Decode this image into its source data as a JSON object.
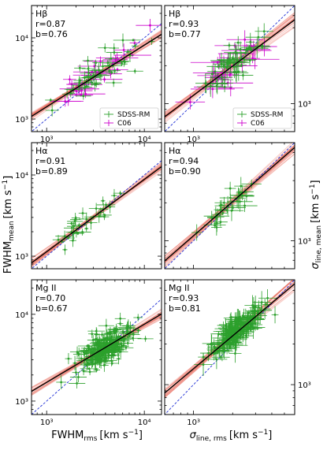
{
  "figure": {
    "ylabel_left": "FWHM",
    "ylabel_left_sub": "mean",
    "ylabel_left_units": "[km s",
    "ylabel_right": "σ",
    "ylabel_right_sub": "line, mean",
    "ylabel_right_units": "[km s",
    "xlabel_left": "FWHM",
    "xlabel_left_sub": "rms",
    "xlabel_left_units": "[km s",
    "xlabel_right": "σ",
    "xlabel_right_sub": "line, rms",
    "xlabel_right_units": "[km s",
    "units_exp": "−1",
    "units_close": "]",
    "legend": [
      {
        "label": "SDSS-RM",
        "color": "#2ca02c",
        "marker": "errorbar-plus"
      },
      {
        "label": "C06",
        "color": "#cc00cc",
        "marker": "errorbar-plus"
      }
    ],
    "colors": {
      "sdss": "#2ca02c",
      "c06": "#cc00cc",
      "fit": "#000000",
      "band": "#e8665a",
      "one_to_one": "#1f2fd6"
    }
  },
  "chart_data": [
    {
      "type": "scatter",
      "id": "fwhm-hbeta",
      "line": "Hβ",
      "r_text": "r=0.87",
      "b_text": "b=0.76",
      "xscale": "log",
      "yscale": "log",
      "xlim": [
        700,
        15000
      ],
      "ylim": [
        700,
        25000
      ],
      "xticks": [
        {
          "value": 1000,
          "label": "10³"
        },
        {
          "value": 10000,
          "label": "10⁴"
        }
      ],
      "yticks_left": [
        {
          "value": 1000,
          "label": "10³"
        },
        {
          "value": 10000,
          "label": "10⁴"
        }
      ],
      "fit": {
        "log_pivot": 3.5,
        "intercept_at_pivot": 3.53,
        "slope": 0.76
      },
      "show_legend": true,
      "seed": 11,
      "n_sdss": 55,
      "n_c06": 30,
      "scatter_dex": 0.1,
      "x_center": 3.55,
      "x_spread": 0.22
    },
    {
      "type": "scatter",
      "id": "sigma-hbeta",
      "line": "Hβ",
      "r_text": "r=0.93",
      "b_text": "b=0.77",
      "xscale": "log",
      "yscale": "log",
      "xlim": [
        600,
        6000
      ],
      "ylim": [
        600,
        6000
      ],
      "xticks": [
        {
          "value": 1000,
          "label": "10³"
        }
      ],
      "yticks_right": [
        {
          "value": 1000,
          "label": "10³"
        }
      ],
      "fit": {
        "log_pivot": 3.2,
        "intercept_at_pivot": 3.22,
        "slope": 0.77
      },
      "show_legend": true,
      "seed": 23,
      "n_sdss": 55,
      "n_c06": 30,
      "scatter_dex": 0.06,
      "x_center": 3.28,
      "x_spread": 0.12
    },
    {
      "type": "scatter",
      "id": "fwhm-halpha",
      "line": "Hα",
      "r_text": "r=0.91",
      "b_text": "b=0.89",
      "xscale": "log",
      "yscale": "log",
      "xlim": [
        700,
        15000
      ],
      "ylim": [
        700,
        25000
      ],
      "xticks": [],
      "yticks_left": [
        {
          "value": 1000,
          "label": "10³"
        },
        {
          "value": 10000,
          "label": "10⁴"
        }
      ],
      "fit": {
        "log_pivot": 3.5,
        "intercept_at_pivot": 3.5,
        "slope": 0.89
      },
      "show_legend": false,
      "seed": 37,
      "n_sdss": 35,
      "n_c06": 0,
      "scatter_dex": 0.07,
      "x_center": 3.48,
      "x_spread": 0.17
    },
    {
      "type": "scatter",
      "id": "sigma-halpha",
      "line": "Hα",
      "r_text": "r=0.94",
      "b_text": "b=0.90",
      "xscale": "log",
      "yscale": "log",
      "xlim": [
        600,
        6000
      ],
      "ylim": [
        600,
        6000
      ],
      "xticks": [],
      "yticks_right": [
        {
          "value": 1000,
          "label": "10³"
        }
      ],
      "fit": {
        "log_pivot": 3.2,
        "intercept_at_pivot": 3.22,
        "slope": 0.9
      },
      "show_legend": false,
      "seed": 41,
      "n_sdss": 32,
      "n_c06": 0,
      "scatter_dex": 0.05,
      "x_center": 3.28,
      "x_spread": 0.1
    },
    {
      "type": "scatter",
      "id": "fwhm-mgii",
      "line": "Mg II",
      "r_text": "r=0.70",
      "b_text": "b=0.67",
      "xscale": "log",
      "yscale": "log",
      "xlim": [
        700,
        15000
      ],
      "ylim": [
        700,
        25000
      ],
      "xticks": [
        {
          "value": 1000,
          "label": "10³"
        },
        {
          "value": 10000,
          "label": "10⁴"
        }
      ],
      "yticks_left": [
        {
          "value": 1000,
          "label": "10³"
        },
        {
          "value": 10000,
          "label": "10⁴"
        }
      ],
      "fit": {
        "log_pivot": 3.5,
        "intercept_at_pivot": 3.55,
        "slope": 0.67
      },
      "show_legend": false,
      "seed": 53,
      "n_sdss": 240,
      "n_c06": 0,
      "scatter_dex": 0.1,
      "x_center": 3.6,
      "x_spread": 0.15
    },
    {
      "type": "scatter",
      "id": "sigma-mgii",
      "line": "Mg II",
      "r_text": "r=0.93",
      "b_text": "b=0.81",
      "xscale": "log",
      "yscale": "log",
      "xlim": [
        600,
        6000
      ],
      "ylim": [
        600,
        6000
      ],
      "xticks": [
        {
          "value": 1000,
          "label": "10³"
        }
      ],
      "yticks_right": [
        {
          "value": 1000,
          "label": "10³"
        }
      ],
      "fit": {
        "log_pivot": 3.2,
        "intercept_at_pivot": 3.28,
        "slope": 0.81
      },
      "show_legend": false,
      "seed": 67,
      "n_sdss": 180,
      "n_c06": 0,
      "scatter_dex": 0.05,
      "x_center": 3.32,
      "x_spread": 0.09
    }
  ]
}
